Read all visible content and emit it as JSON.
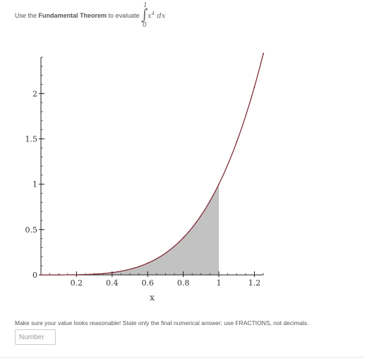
{
  "prompt": {
    "prefix": "Use the ",
    "bold": "Fundamental Theorem",
    "suffix": " to evaluate",
    "integral": {
      "upper": "1",
      "lower": "0",
      "integrand_base": "x",
      "integrand_exponent": "4",
      "differential": "dx"
    }
  },
  "chart_data": {
    "type": "area",
    "title": "",
    "xlabel": "x",
    "ylabel": "",
    "xlim": [
      0,
      1.25
    ],
    "ylim": [
      0,
      2.4
    ],
    "x_ticks": [
      "0.2",
      "0.4",
      "0.6",
      "0.8",
      "1",
      "1.2"
    ],
    "y_ticks": [
      "0",
      "0.5",
      "1",
      "1.5",
      "2"
    ],
    "series": [
      {
        "function": "x^4",
        "x": [
          0,
          0.2,
          0.4,
          0.6,
          0.8,
          1.0,
          1.1,
          1.2,
          1.25
        ],
        "values": [
          0,
          0.0016,
          0.0256,
          0.1296,
          0.4096,
          1.0,
          1.4641,
          2.0736,
          2.4414
        ],
        "color": "#7a1f2b"
      }
    ],
    "shaded_region": {
      "from": 0,
      "to": 1,
      "color": "#c2c2c2"
    }
  },
  "answer": {
    "instruction": "Make sure your value looks reasonable! State only the final numerical answer; use FRACTIONS, not decimals.",
    "placeholder": "Number"
  }
}
